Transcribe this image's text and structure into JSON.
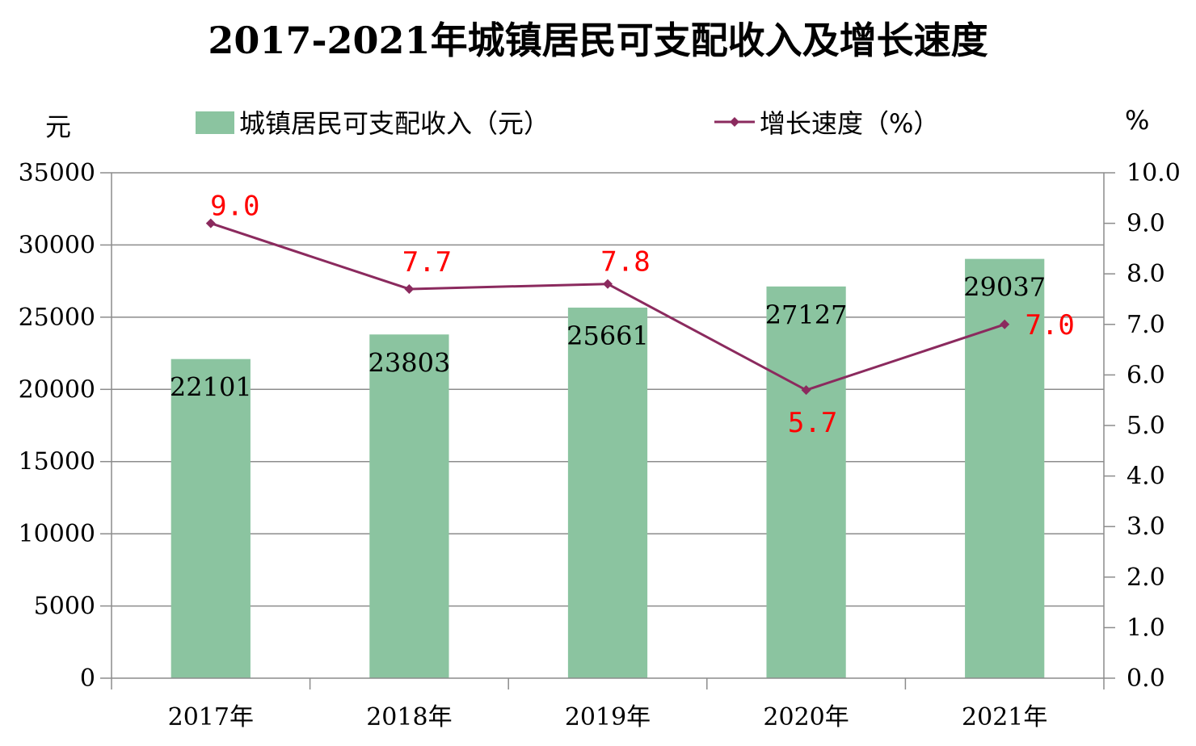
{
  "chart_data": {
    "type": "bar",
    "title": "2017-2021年城镇居民可支配收入及增长速度",
    "categories": [
      "2017年",
      "2018年",
      "2019年",
      "2020年",
      "2021年"
    ],
    "left_axis_unit": "元",
    "right_axis_unit": "%",
    "y_left": {
      "min": 0,
      "max": 35000,
      "step": 5000,
      "tick_labels": [
        "0",
        "5000",
        "10000",
        "15000",
        "20000",
        "25000",
        "30000",
        "35000"
      ]
    },
    "y_right": {
      "min": 0,
      "max": 10,
      "step": 1,
      "tick_labels": [
        "0.0",
        "1.0",
        "2.0",
        "3.0",
        "4.0",
        "5.0",
        "6.0",
        "7.0",
        "8.0",
        "9.0",
        "10.0"
      ]
    },
    "grid": true,
    "legend_position": "top",
    "series": [
      {
        "name": "城镇居民可支配收入（元）",
        "type": "bar",
        "axis": "left",
        "color": "#8bc4a0",
        "values": [
          22101,
          23803,
          25661,
          27127,
          29037
        ],
        "labels": [
          "22101",
          "23803",
          "25661",
          "27127",
          "29037"
        ]
      },
      {
        "name": "增长速度（%）",
        "type": "line",
        "axis": "right",
        "color": "#8b2a5e",
        "label_color": "#ff0000",
        "values": [
          9.0,
          7.7,
          7.8,
          5.7,
          7.0
        ],
        "labels": [
          "9.0",
          "7.7",
          "7.8",
          "5.7",
          "7.0"
        ]
      }
    ]
  }
}
